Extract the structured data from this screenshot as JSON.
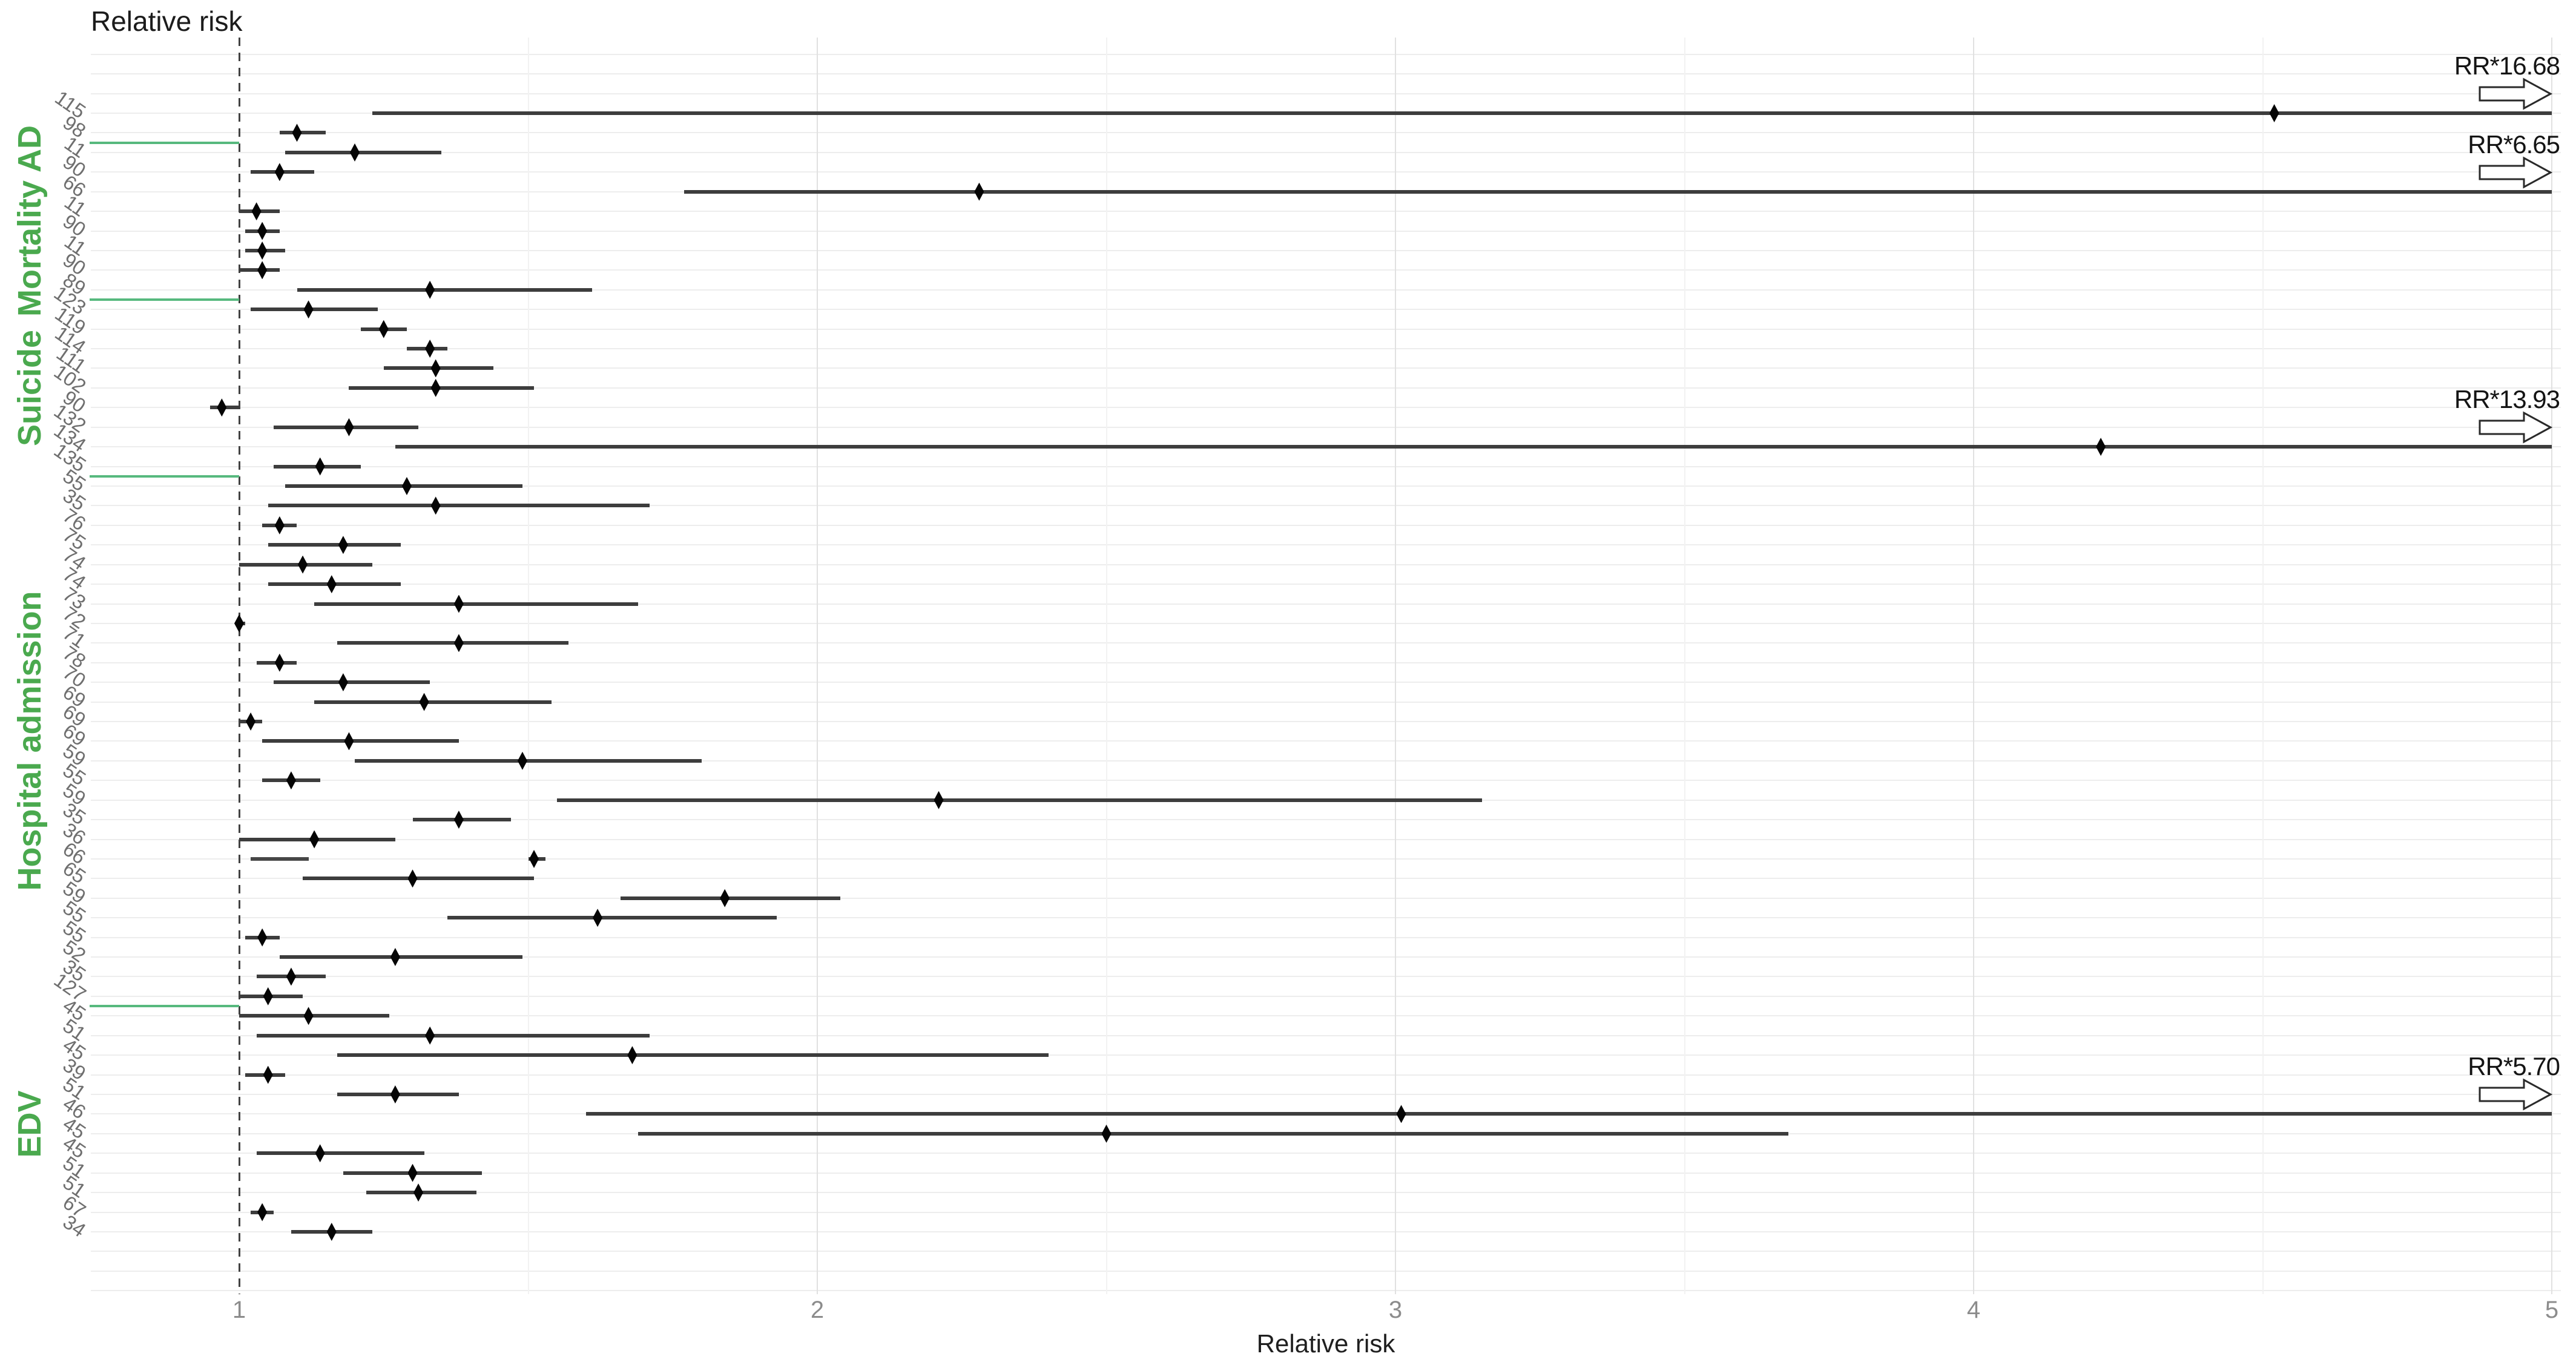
{
  "chart_data": {
    "type": "forest",
    "title": "Relative risk",
    "xlabel": "Relative risk",
    "xlim": [
      1,
      5
    ],
    "xticks": [
      1,
      2,
      3,
      4,
      5
    ],
    "minor_xgrid": [
      1.5,
      2.5,
      3.5,
      4.5
    ],
    "reference_line": 1,
    "legend": "none",
    "note": "values beyond x=5 are truncated and annotated with RR* labels and open arrows",
    "groups": [
      {
        "label": "",
        "rows": [
          {
            "ref": "115",
            "rr": 4.52,
            "lo": 1.23,
            "hi": null,
            "arrow": "RR*16.68"
          },
          {
            "ref": "98",
            "rr": 1.1,
            "lo": 1.07,
            "hi": 1.15
          }
        ]
      },
      {
        "label": "Mortality AD",
        "rows": [
          {
            "ref": "11",
            "rr": 1.2,
            "lo": 1.08,
            "hi": 1.35
          },
          {
            "ref": "90",
            "rr": 1.07,
            "lo": 1.02,
            "hi": 1.13
          },
          {
            "ref": "66",
            "rr": 2.28,
            "lo": 1.77,
            "hi": null,
            "arrow": "RR*6.65"
          },
          {
            "ref": "11",
            "rr": 1.03,
            "lo": 1.0,
            "hi": 1.07
          },
          {
            "ref": "90",
            "rr": 1.04,
            "lo": 1.01,
            "hi": 1.07
          },
          {
            "ref": "11",
            "rr": 1.04,
            "lo": 1.01,
            "hi": 1.08
          },
          {
            "ref": "90",
            "rr": 1.04,
            "lo": 1.0,
            "hi": 1.07
          },
          {
            "ref": "89",
            "rr": 1.33,
            "lo": 1.1,
            "hi": 1.61
          }
        ]
      },
      {
        "label": "Suicide",
        "rows": [
          {
            "ref": "123",
            "rr": 1.12,
            "lo": 1.02,
            "hi": 1.24
          },
          {
            "ref": "119",
            "rr": 1.25,
            "lo": 1.21,
            "hi": 1.29
          },
          {
            "ref": "114",
            "rr": 1.33,
            "lo": 1.29,
            "hi": 1.36
          },
          {
            "ref": "111",
            "rr": 1.34,
            "lo": 1.25,
            "hi": 1.44
          },
          {
            "ref": "102",
            "rr": 1.34,
            "lo": 1.19,
            "hi": 1.51
          },
          {
            "ref": "90",
            "rr": 0.97,
            "lo": 0.95,
            "hi": 1.0
          },
          {
            "ref": "132",
            "rr": 1.19,
            "lo": 1.06,
            "hi": 1.31
          },
          {
            "ref": "134",
            "rr": 4.22,
            "lo": 1.27,
            "hi": null,
            "arrow": "RR*13.93"
          },
          {
            "ref": "135",
            "rr": 1.14,
            "lo": 1.06,
            "hi": 1.21
          }
        ]
      },
      {
        "label": "Hospital admission",
        "rows": [
          {
            "ref": "55",
            "rr": 1.29,
            "lo": 1.08,
            "hi": 1.49
          },
          {
            "ref": "35",
            "rr": 1.34,
            "lo": 1.05,
            "hi": 1.71
          },
          {
            "ref": "76",
            "rr": 1.07,
            "lo": 1.04,
            "hi": 1.1
          },
          {
            "ref": "75",
            "rr": 1.18,
            "lo": 1.05,
            "hi": 1.28
          },
          {
            "ref": "74",
            "rr": 1.11,
            "lo": 1.0,
            "hi": 1.23
          },
          {
            "ref": "74",
            "rr": 1.16,
            "lo": 1.05,
            "hi": 1.28
          },
          {
            "ref": "73",
            "rr": 1.38,
            "lo": 1.13,
            "hi": 1.69
          },
          {
            "ref": "72",
            "rr": 1.0,
            "lo": 1.0,
            "hi": 1.01
          },
          {
            "ref": "71",
            "rr": 1.38,
            "lo": 1.17,
            "hi": 1.57
          },
          {
            "ref": "78",
            "rr": 1.07,
            "lo": 1.03,
            "hi": 1.1
          },
          {
            "ref": "70",
            "rr": 1.18,
            "lo": 1.06,
            "hi": 1.33
          },
          {
            "ref": "69",
            "rr": 1.32,
            "lo": 1.13,
            "hi": 1.54
          },
          {
            "ref": "69",
            "rr": 1.02,
            "lo": 1.0,
            "hi": 1.04
          },
          {
            "ref": "69",
            "rr": 1.19,
            "lo": 1.04,
            "hi": 1.38
          },
          {
            "ref": "59",
            "rr": 1.49,
            "lo": 1.2,
            "hi": 1.8
          },
          {
            "ref": "55",
            "rr": 1.09,
            "lo": 1.04,
            "hi": 1.14
          },
          {
            "ref": "59",
            "rr": 2.21,
            "lo": 1.55,
            "hi": 3.15
          },
          {
            "ref": "35",
            "rr": 1.38,
            "lo": 1.3,
            "hi": 1.47
          },
          {
            "ref": "36",
            "rr": 1.13,
            "lo": 1.0,
            "hi": 1.27
          },
          {
            "ref": "66",
            "rr": 1.51,
            "lo": 1.5,
            "hi": 1.53,
            "segment": [
              1.02,
              1.12
            ]
          },
          {
            "ref": "65",
            "rr": 1.3,
            "lo": 1.11,
            "hi": 1.51
          },
          {
            "ref": "59",
            "rr": 1.84,
            "lo": 1.66,
            "hi": 2.04
          },
          {
            "ref": "55",
            "rr": 1.62,
            "lo": 1.36,
            "hi": 1.93
          },
          {
            "ref": "55",
            "rr": 1.04,
            "lo": 1.01,
            "hi": 1.07
          },
          {
            "ref": "52",
            "rr": 1.27,
            "lo": 1.07,
            "hi": 1.49
          },
          {
            "ref": "35",
            "rr": 1.09,
            "lo": 1.03,
            "hi": 1.15
          },
          {
            "ref": "127",
            "rr": 1.05,
            "lo": 1.0,
            "hi": 1.11
          }
        ]
      },
      {
        "label": "EDV",
        "rows": [
          {
            "ref": "45",
            "rr": 1.12,
            "lo": 1.0,
            "hi": 1.26
          },
          {
            "ref": "51",
            "rr": 1.33,
            "lo": 1.03,
            "hi": 1.71
          },
          {
            "ref": "45",
            "rr": 1.68,
            "lo": 1.17,
            "hi": 2.4
          },
          {
            "ref": "39",
            "rr": 1.05,
            "lo": 1.01,
            "hi": 1.08
          },
          {
            "ref": "51",
            "rr": 1.27,
            "lo": 1.17,
            "hi": 1.38
          },
          {
            "ref": "46",
            "rr": 3.01,
            "lo": 1.6,
            "hi": null,
            "arrow": "RR*5.70"
          },
          {
            "ref": "45",
            "rr": 2.5,
            "lo": 1.69,
            "hi": 3.68
          },
          {
            "ref": "45",
            "rr": 1.14,
            "lo": 1.03,
            "hi": 1.32
          },
          {
            "ref": "51",
            "rr": 1.3,
            "lo": 1.18,
            "hi": 1.42
          },
          {
            "ref": "51",
            "rr": 1.31,
            "lo": 1.22,
            "hi": 1.41
          },
          {
            "ref": "67",
            "rr": 1.04,
            "lo": 1.02,
            "hi": 1.06
          },
          {
            "ref": "34",
            "rr": 1.16,
            "lo": 1.09,
            "hi": 1.23
          }
        ]
      }
    ]
  },
  "colors": {
    "group_label_green": "#4aa94e",
    "separator_green": "#57b97e",
    "ci_line": "#3d3d3d",
    "point": "#050505",
    "row_label_gray": "#6f6f6f",
    "tick_gray": "#8c8c8c"
  }
}
